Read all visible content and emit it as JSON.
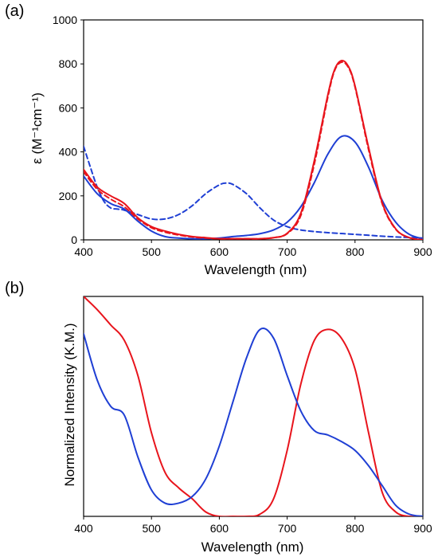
{
  "chart_data": [
    {
      "panel_label": "(a)",
      "type": "line",
      "xlabel": "Wavelength (nm)",
      "ylabel": "ε (M⁻¹cm⁻¹)",
      "xlim": [
        400,
        900
      ],
      "ylim": [
        0,
        1000
      ],
      "xticks": [
        400,
        500,
        600,
        700,
        800,
        900
      ],
      "yticks": [
        0,
        200,
        400,
        600,
        800,
        1000
      ],
      "grid": false,
      "legend": "none",
      "series": [
        {
          "color": "#1f3fd4",
          "dash": "dashed",
          "x": [
            400,
            410,
            420,
            430,
            440,
            450,
            460,
            480,
            500,
            520,
            540,
            560,
            580,
            600,
            610,
            620,
            640,
            660,
            680,
            700,
            720,
            750,
            800,
            850,
            900
          ],
          "y": [
            425,
            330,
            240,
            175,
            145,
            140,
            135,
            115,
            95,
            95,
            115,
            155,
            210,
            250,
            258,
            252,
            210,
            145,
            90,
            60,
            45,
            35,
            25,
            15,
            8
          ]
        },
        {
          "color": "#1f3fd4",
          "dash": "solid",
          "x": [
            400,
            420,
            440,
            460,
            480,
            500,
            520,
            540,
            560,
            580,
            600,
            620,
            640,
            660,
            680,
            700,
            720,
            740,
            760,
            780,
            800,
            820,
            840,
            860,
            880,
            900
          ],
          "y": [
            290,
            210,
            165,
            140,
            85,
            40,
            15,
            8,
            5,
            5,
            8,
            15,
            20,
            28,
            45,
            80,
            150,
            260,
            390,
            470,
            445,
            330,
            180,
            80,
            25,
            5
          ]
        },
        {
          "color": "#e8141c",
          "dash": "solid",
          "x": [
            400,
            420,
            440,
            460,
            480,
            500,
            520,
            540,
            560,
            580,
            600,
            620,
            640,
            660,
            680,
            700,
            720,
            740,
            760,
            770,
            780,
            790,
            800,
            820,
            840,
            860,
            880,
            900
          ],
          "y": [
            320,
            240,
            200,
            165,
            100,
            60,
            40,
            25,
            15,
            10,
            5,
            5,
            5,
            5,
            10,
            30,
            120,
            360,
            660,
            775,
            815,
            790,
            700,
            420,
            170,
            50,
            10,
            0
          ]
        },
        {
          "color": "#e8141c",
          "dash": "dashed",
          "x": [
            400,
            420,
            440,
            460,
            480,
            500,
            520,
            540,
            560,
            580,
            600,
            620,
            640,
            660,
            680,
            700,
            720,
            740,
            760,
            770,
            780,
            790,
            800,
            820,
            840,
            860,
            880,
            900
          ],
          "y": [
            310,
            230,
            185,
            150,
            95,
            55,
            35,
            22,
            13,
            8,
            5,
            5,
            5,
            5,
            10,
            28,
            110,
            345,
            650,
            770,
            808,
            785,
            695,
            410,
            165,
            48,
            10,
            0
          ]
        }
      ]
    },
    {
      "panel_label": "(b)",
      "type": "line",
      "xlabel": "Wavelength (nm)",
      "ylabel": "Normalized Intensity (K.M.)",
      "xlim": [
        400,
        900
      ],
      "ylim": [
        0,
        1
      ],
      "xticks": [
        400,
        500,
        600,
        700,
        800,
        900
      ],
      "yticks": [],
      "grid": false,
      "legend": "none",
      "series": [
        {
          "color": "#e8141c",
          "dash": "solid",
          "x": [
            400,
            420,
            440,
            460,
            480,
            500,
            520,
            540,
            560,
            580,
            600,
            620,
            640,
            660,
            680,
            700,
            720,
            740,
            760,
            780,
            800,
            820,
            840,
            860,
            880,
            900
          ],
          "y": [
            1.0,
            0.94,
            0.87,
            0.8,
            0.64,
            0.38,
            0.2,
            0.13,
            0.08,
            0.02,
            0.0,
            0.0,
            0.0,
            0.01,
            0.08,
            0.3,
            0.6,
            0.8,
            0.85,
            0.81,
            0.67,
            0.38,
            0.11,
            0.02,
            0.0,
            0.0
          ]
        },
        {
          "color": "#1f3fd4",
          "dash": "solid",
          "x": [
            400,
            420,
            440,
            460,
            480,
            500,
            520,
            540,
            560,
            580,
            600,
            620,
            640,
            660,
            680,
            700,
            720,
            740,
            760,
            780,
            800,
            820,
            840,
            860,
            880,
            900
          ],
          "y": [
            0.83,
            0.62,
            0.5,
            0.46,
            0.27,
            0.12,
            0.06,
            0.06,
            0.09,
            0.17,
            0.32,
            0.52,
            0.72,
            0.85,
            0.81,
            0.64,
            0.48,
            0.39,
            0.37,
            0.34,
            0.3,
            0.23,
            0.14,
            0.05,
            0.01,
            0.0
          ]
        }
      ]
    }
  ]
}
